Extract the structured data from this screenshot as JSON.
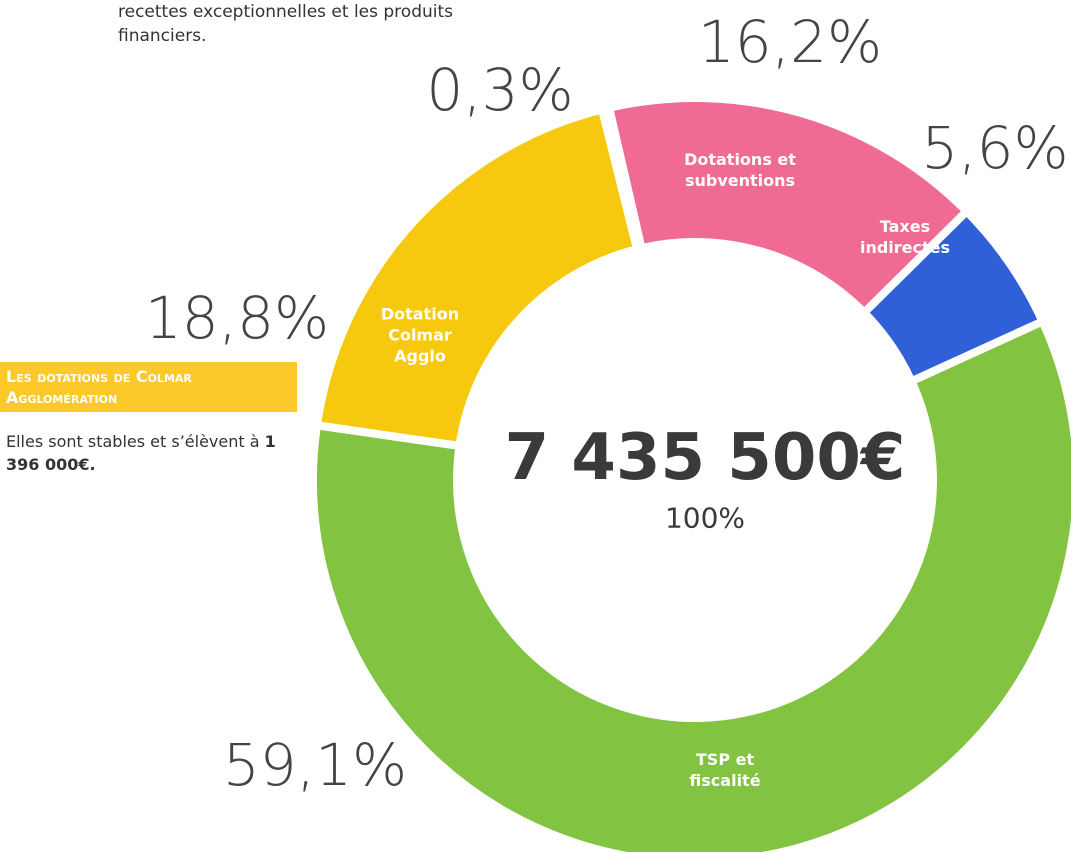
{
  "intro": "recettes exceptionnelles et les produits financiers.",
  "box_title": "Les dotations de Colmar Agglomération",
  "box_text": "Elles sont stables et s’élèvent à",
  "box_amount": "1 396 000€.",
  "chart_data": {
    "type": "pie",
    "donut": true,
    "categories": [
      "Dotations et subventions",
      "Taxes indirectes",
      "TSP et fiscalité",
      "Dotation Colmar Agglo",
      null
    ],
    "values": [
      16.2,
      5.6,
      59.1,
      18.8,
      0.3
    ],
    "value_labels": [
      "16,2%",
      "5,6%",
      "59,1%",
      "18,8%",
      "0,3%"
    ],
    "colors": [
      "#f06b93",
      "#3060d8",
      "#82c341",
      "#f6c90e",
      "#3a9ad9"
    ],
    "center_label": "7 435 500€",
    "center_sublabel": "100%"
  }
}
